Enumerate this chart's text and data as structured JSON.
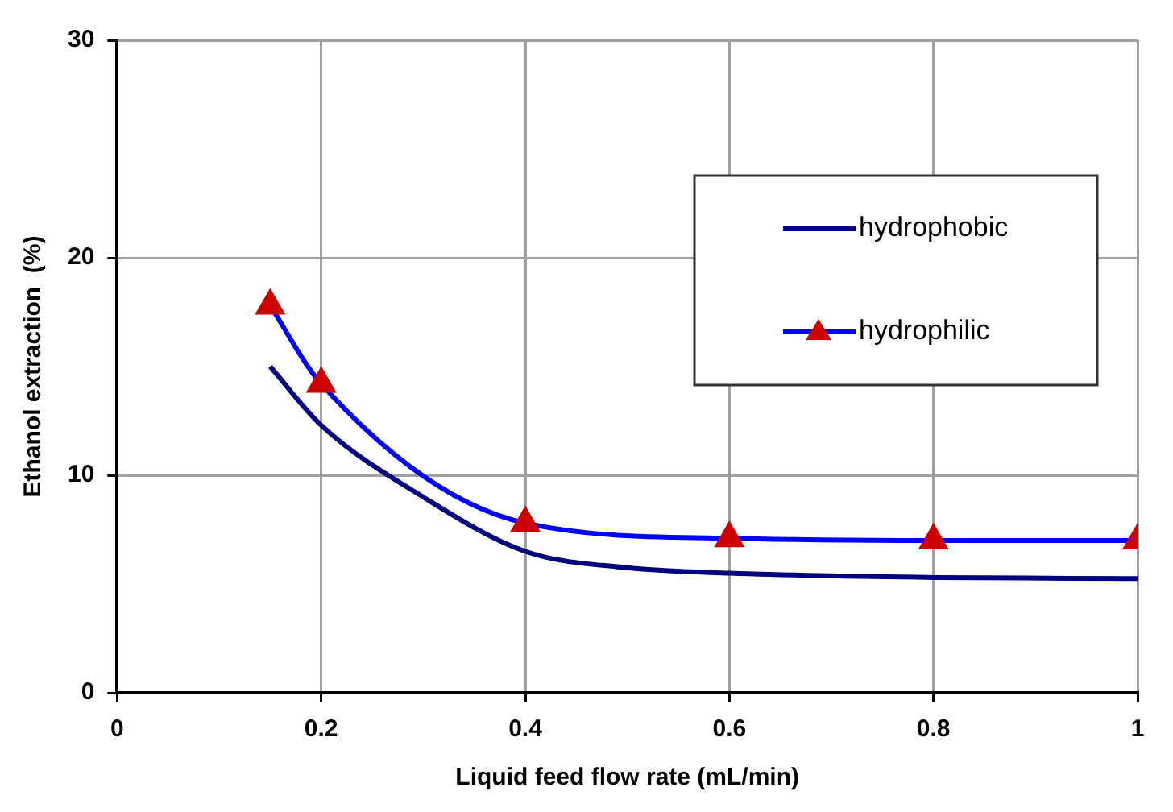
{
  "chart_data": {
    "type": "line",
    "xlabel": "Liquid feed flow rate (mL/min)",
    "ylabel": "Ethanol extraction  (%)",
    "xlim": [
      0,
      1
    ],
    "xticks": [
      0,
      0.2,
      0.4,
      0.6,
      0.8,
      1
    ],
    "ylim": [
      0,
      30
    ],
    "yticks": [
      0,
      10,
      20,
      30
    ],
    "grid": true,
    "legend": "top right",
    "series": [
      {
        "name": "hydrophobic",
        "color": "#000080",
        "marker": "none",
        "x": [
          0.15,
          0.2,
          0.3,
          0.4,
          0.5,
          0.6,
          0.8,
          1
        ],
        "values": [
          15,
          12.3,
          9,
          6.5,
          5.75,
          5.5,
          5.3,
          5.25
        ]
      },
      {
        "name": "hydrophilic",
        "color": "#0000ff",
        "colors": [
          "#cc0000",
          "#cc0000",
          "#cc0000",
          "#cc0000",
          "#cc0000",
          "#cc0000"
        ],
        "marker": "triangle",
        "x": [
          0.15,
          0.2,
          0.4,
          0.6,
          0.8,
          1
        ],
        "values": [
          17.8,
          14.2,
          7.8,
          7.1,
          7,
          7
        ]
      }
    ]
  }
}
